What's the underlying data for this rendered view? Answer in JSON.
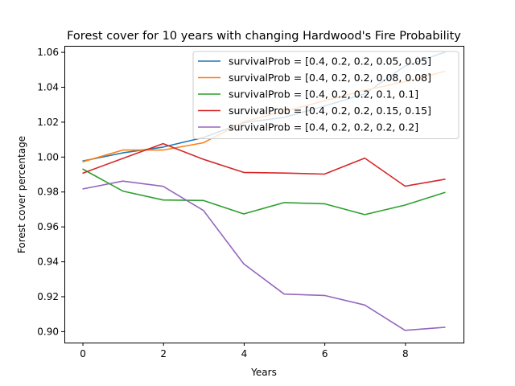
{
  "chart_data": {
    "type": "line",
    "title": "Forest cover for 10 years with changing Hardwood's Fire Probability",
    "xlabel": "Years",
    "ylabel": "Forest cover percentage",
    "xlim": [
      -0.45,
      9.45
    ],
    "ylim": [
      0.8935,
      1.0635
    ],
    "xticks": [
      0,
      2,
      4,
      6,
      8
    ],
    "yticks": [
      0.9,
      0.92,
      0.94,
      0.96,
      0.98,
      1.0,
      1.02,
      1.04,
      1.06
    ],
    "grid": false,
    "legend_position": "top-right",
    "x": [
      0,
      1,
      2,
      3,
      4,
      5,
      6,
      7,
      8,
      9
    ],
    "series": [
      {
        "name": "survivalProb = [0.4, 0.2, 0.2, 0.05, 0.05]",
        "color": "#1f77b4",
        "values": [
          0.9975,
          1.0022,
          1.0055,
          1.011,
          1.0195,
          1.0225,
          1.029,
          1.036,
          1.052,
          1.06
        ]
      },
      {
        "name": "survivalProb = [0.4, 0.2, 0.2, 0.08, 0.08]",
        "color": "#ff7f0e",
        "values": [
          0.997,
          1.0038,
          1.0038,
          1.008,
          1.02,
          1.026,
          1.032,
          1.038,
          1.043,
          1.049
        ]
      },
      {
        "name": "survivalProb = [0.4, 0.2, 0.2, 0.1, 0.1]",
        "color": "#2ca02c",
        "values": [
          0.993,
          0.9803,
          0.9752,
          0.9749,
          0.9672,
          0.9737,
          0.973,
          0.9668,
          0.9723,
          0.9796
        ]
      },
      {
        "name": "survivalProb = [0.4, 0.2, 0.2, 0.15, 0.15]",
        "color": "#d62728",
        "values": [
          0.9905,
          0.999,
          1.0075,
          0.9985,
          0.991,
          0.9906,
          0.99,
          0.9992,
          0.9831,
          0.9871
        ]
      },
      {
        "name": "survivalProb = [0.4, 0.2, 0.2, 0.2, 0.2]",
        "color": "#9467bd",
        "values": [
          0.9815,
          0.986,
          0.983,
          0.9692,
          0.9386,
          0.9213,
          0.9205,
          0.915,
          0.9005,
          0.9023
        ]
      }
    ]
  }
}
